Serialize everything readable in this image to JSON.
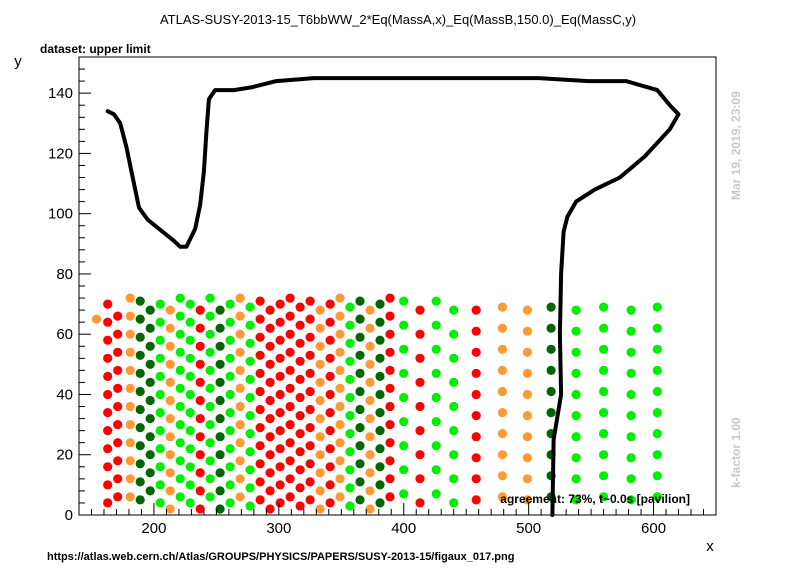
{
  "chart_data": {
    "type": "scatter",
    "title": "ATLAS-SUSY-2013-15_T6bbWW_2*Eq(MassA,x)_Eq(MassB,150.0)_Eq(MassC,y)",
    "dataset_label": "dataset: upper limit",
    "xlabel": "x",
    "ylabel": "y",
    "xlim": [
      140,
      650
    ],
    "ylim": [
      0,
      152
    ],
    "x_ticks": [
      200,
      300,
      400,
      500,
      600
    ],
    "y_ticks": [
      0,
      20,
      40,
      60,
      80,
      100,
      120,
      140
    ],
    "grid": false,
    "legend": "none",
    "agreement_text": "agreement: 73%, t~0.0s [pavilion]",
    "side_text_top": "Mar 19, 2019, 23:09",
    "side_text_bottom": "k-factor 1.00",
    "footer_url": "https://atlas.web.cern.ch/Atlas/GROUPS/PHYSICS/PAPERS/SUSY-2013-15/figaux_017.png",
    "colors": {
      "red": "#ff0000",
      "orange": "#ff9933",
      "dark_green": "#006600",
      "green": "#00ee00",
      "contour": "#000000"
    },
    "point_columns": [
      {
        "x": 154,
        "color": "orange",
        "y": [
          65
        ]
      },
      {
        "x": 163,
        "color": "red",
        "y": [
          4,
          10,
          16,
          22,
          28,
          34,
          40,
          46,
          52,
          58,
          64,
          70
        ]
      },
      {
        "x": 171,
        "color": "red",
        "y": [
          6,
          12,
          18,
          24,
          30,
          36,
          42,
          48,
          54,
          60,
          66
        ]
      },
      {
        "x": 181,
        "color": "orange",
        "y": [
          6,
          12,
          18,
          24,
          30,
          36,
          42,
          48,
          54,
          60,
          66,
          72
        ]
      },
      {
        "x": 189,
        "color": "dark_green",
        "y": [
          5,
          11,
          17,
          23,
          29,
          35,
          41,
          47,
          53,
          59,
          65,
          71
        ]
      },
      {
        "x": 197,
        "color": "dark_green",
        "y": [
          8,
          14,
          20,
          26,
          32,
          38,
          44,
          50,
          56,
          62,
          68
        ]
      },
      {
        "x": 205,
        "color": "green",
        "y": [
          4,
          10,
          16,
          22,
          28,
          34,
          40,
          46,
          52,
          58,
          64,
          70
        ]
      },
      {
        "x": 213,
        "color": "orange",
        "y": [
          2,
          8,
          14,
          20,
          26,
          32,
          38,
          44,
          50,
          56,
          62,
          68
        ]
      },
      {
        "x": 221,
        "color": "green",
        "y": [
          6,
          12,
          18,
          24,
          30,
          36,
          42,
          48,
          54,
          60,
          66,
          72
        ]
      },
      {
        "x": 229,
        "color": "green",
        "y": [
          4,
          10,
          16,
          22,
          28,
          34,
          40,
          46,
          52,
          58,
          64,
          70
        ]
      },
      {
        "x": 237,
        "color": "red",
        "y": [
          2,
          8,
          14,
          20,
          26,
          32,
          38,
          44,
          50,
          56,
          62,
          68
        ]
      },
      {
        "x": 245,
        "color": "green",
        "y": [
          6,
          12,
          18,
          24,
          30,
          36,
          42,
          48,
          54,
          60,
          66,
          72
        ]
      },
      {
        "x": 253,
        "color": "dark_green",
        "y": [
          2,
          8,
          14,
          20,
          26,
          32,
          38,
          44,
          50,
          56,
          62,
          68
        ]
      },
      {
        "x": 261,
        "color": "green",
        "y": [
          4,
          10,
          16,
          22,
          28,
          34,
          40,
          46,
          52,
          58,
          64,
          70
        ]
      },
      {
        "x": 269,
        "color": "orange",
        "y": [
          6,
          12,
          18,
          24,
          30,
          36,
          42,
          48,
          54,
          60,
          66,
          72
        ]
      },
      {
        "x": 277,
        "color": "green",
        "y": [
          3,
          9,
          15,
          21,
          27,
          33,
          39,
          45,
          51,
          57,
          63,
          69
        ]
      },
      {
        "x": 285,
        "color": "red",
        "y": [
          5,
          11,
          17,
          23,
          29,
          35,
          41,
          47,
          53,
          59,
          65,
          71
        ]
      },
      {
        "x": 293,
        "color": "red",
        "y": [
          2,
          8,
          14,
          20,
          26,
          32,
          38,
          44,
          50,
          56,
          62,
          68
        ]
      },
      {
        "x": 301,
        "color": "red",
        "y": [
          4,
          10,
          16,
          22,
          28,
          34,
          40,
          46,
          52,
          58,
          64,
          70
        ]
      },
      {
        "x": 309,
        "color": "red",
        "y": [
          6,
          12,
          18,
          24,
          30,
          36,
          42,
          48,
          54,
          60,
          66,
          72
        ]
      },
      {
        "x": 317,
        "color": "red",
        "y": [
          3,
          9,
          15,
          21,
          27,
          33,
          39,
          45,
          51,
          57,
          63,
          69
        ]
      },
      {
        "x": 325,
        "color": "red",
        "y": [
          5,
          11,
          17,
          23,
          29,
          35,
          41,
          47,
          53,
          59,
          65,
          71
        ]
      },
      {
        "x": 333,
        "color": "orange",
        "y": [
          2,
          8,
          14,
          20,
          26,
          32,
          38,
          44,
          50,
          56,
          62,
          68
        ]
      },
      {
        "x": 341,
        "color": "red",
        "y": [
          4,
          10,
          16,
          22,
          28,
          34,
          40,
          46,
          52,
          58,
          64,
          70
        ]
      },
      {
        "x": 349,
        "color": "orange",
        "y": [
          6,
          12,
          18,
          24,
          30,
          36,
          42,
          48,
          54,
          60,
          66,
          72
        ]
      },
      {
        "x": 357,
        "color": "green",
        "y": [
          3,
          9,
          15,
          21,
          27,
          33,
          39,
          45,
          51,
          57,
          63,
          69
        ]
      },
      {
        "x": 365,
        "color": "dark_green",
        "y": [
          5,
          11,
          17,
          23,
          29,
          35,
          41,
          47,
          53,
          59,
          65,
          71
        ]
      },
      {
        "x": 373,
        "color": "orange",
        "y": [
          2,
          8,
          14,
          20,
          26,
          32,
          38,
          44,
          50,
          56,
          62,
          68
        ]
      },
      {
        "x": 381,
        "color": "dark_green",
        "y": [
          4,
          10,
          16,
          22,
          28,
          34,
          40,
          46,
          52,
          58,
          64,
          70
        ]
      },
      {
        "x": 389,
        "color": "red",
        "y": [
          6,
          12,
          18,
          24,
          30,
          36,
          42,
          48,
          54,
          60,
          66,
          72
        ]
      },
      {
        "x": 400,
        "color": "green",
        "y": [
          7,
          15,
          23,
          31,
          39,
          47,
          55,
          63,
          71
        ]
      },
      {
        "x": 413,
        "color": "red",
        "y": [
          4,
          12,
          20,
          28,
          36,
          44,
          52,
          60,
          68
        ]
      },
      {
        "x": 426,
        "color": "green",
        "y": [
          7,
          15,
          23,
          31,
          39,
          47,
          55,
          63,
          71
        ]
      },
      {
        "x": 440,
        "color": "green",
        "y": [
          4,
          12,
          20,
          28,
          36,
          44,
          52,
          60,
          68
        ]
      },
      {
        "x": 458,
        "color": "red",
        "y": [
          5,
          12,
          19,
          26,
          33,
          40,
          47,
          54,
          61,
          68
        ]
      },
      {
        "x": 479,
        "color": "orange",
        "y": [
          6,
          13,
          20,
          27,
          34,
          41,
          48,
          55,
          62,
          69
        ]
      },
      {
        "x": 499,
        "color": "orange",
        "y": [
          5,
          12,
          19,
          26,
          33,
          40,
          47,
          54,
          61,
          68
        ]
      },
      {
        "x": 518,
        "color": "dark_green",
        "y": [
          6,
          13,
          20,
          27,
          34,
          41,
          48,
          55,
          62,
          69
        ]
      },
      {
        "x": 538,
        "color": "green",
        "y": [
          5,
          12,
          19,
          26,
          33,
          40,
          47,
          54,
          61,
          68
        ]
      },
      {
        "x": 560,
        "color": "green",
        "y": [
          6,
          13,
          20,
          27,
          34,
          41,
          48,
          55,
          62,
          69
        ]
      },
      {
        "x": 582,
        "color": "green",
        "y": [
          5,
          12,
          19,
          26,
          33,
          40,
          47,
          54,
          61,
          68
        ]
      },
      {
        "x": 603,
        "color": "green",
        "y": [
          6,
          13,
          20,
          27,
          34,
          41,
          48,
          55,
          62,
          69
        ]
      }
    ],
    "contour": [
      [
        163,
        134
      ],
      [
        168,
        133
      ],
      [
        173,
        130
      ],
      [
        178,
        122
      ],
      [
        183,
        112
      ],
      [
        188,
        102
      ],
      [
        195,
        98
      ],
      [
        207,
        94
      ],
      [
        216,
        91
      ],
      [
        221,
        89
      ],
      [
        226,
        89
      ],
      [
        233,
        95
      ],
      [
        237,
        103
      ],
      [
        240,
        114
      ],
      [
        242,
        127
      ],
      [
        244,
        138
      ],
      [
        249,
        141
      ],
      [
        264,
        141
      ],
      [
        279,
        142
      ],
      [
        298,
        144
      ],
      [
        328,
        145
      ],
      [
        368,
        145
      ],
      [
        398,
        145
      ],
      [
        438,
        145
      ],
      [
        478,
        145
      ],
      [
        508,
        145
      ],
      [
        548,
        144
      ],
      [
        578,
        144
      ],
      [
        603,
        141
      ],
      [
        613,
        136
      ],
      [
        620,
        133
      ],
      [
        613,
        128
      ],
      [
        593,
        119
      ],
      [
        573,
        112
      ],
      [
        553,
        108
      ],
      [
        538,
        104
      ],
      [
        531,
        99
      ],
      [
        528,
        94
      ],
      [
        526,
        80
      ],
      [
        525,
        60
      ],
      [
        526,
        40
      ],
      [
        520,
        25
      ],
      [
        519,
        0
      ]
    ]
  }
}
